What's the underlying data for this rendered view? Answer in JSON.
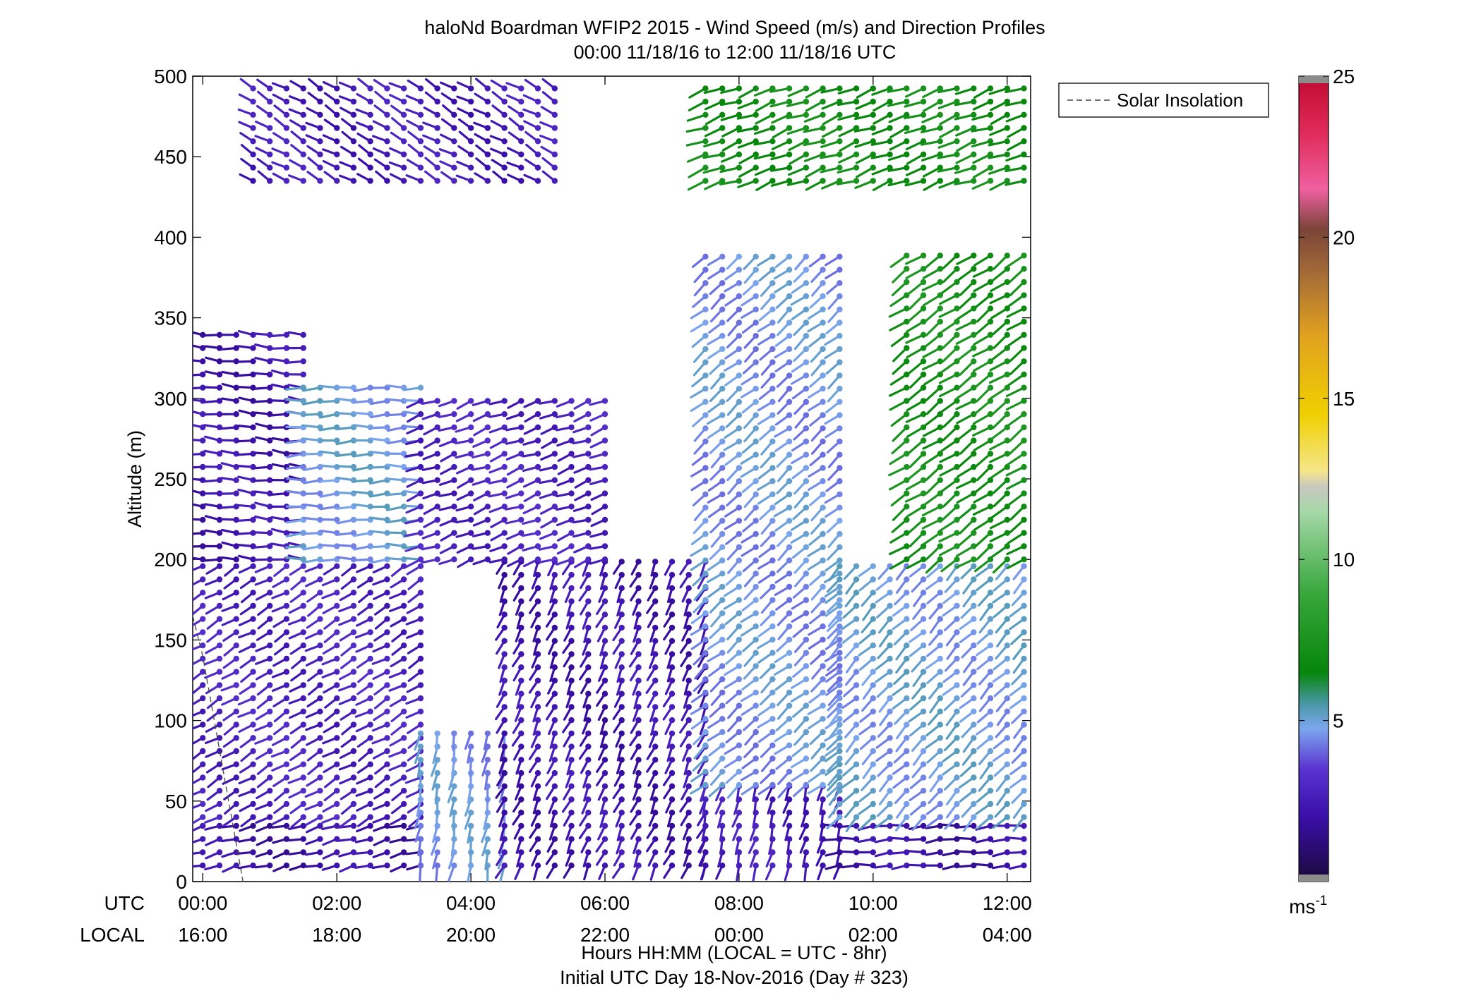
{
  "chart_data": {
    "type": "wind-barb profile (time-height)",
    "title": "haloNd Boardman WFIP2 2015 - Wind Speed (m/s) and Direction Profiles",
    "subtitle": "00:00 11/18/16 to 12:00 11/18/16  UTC",
    "ylabel": "Altitude (m)",
    "ylim": [
      0,
      500
    ],
    "yticks": [
      "0",
      "50",
      "100",
      "150",
      "200",
      "250",
      "300",
      "350",
      "400",
      "450",
      "500"
    ],
    "xlim_hours": [
      -0.15,
      12.35
    ],
    "utc_row_label": "UTC",
    "local_row_label": "LOCAL",
    "utc_ticks": [
      "00:00",
      "02:00",
      "04:00",
      "06:00",
      "08:00",
      "10:00",
      "12:00"
    ],
    "local_ticks": [
      "16:00",
      "18:00",
      "20:00",
      "22:00",
      "00:00",
      "02:00",
      "04:00"
    ],
    "xlabel": "Hours HH:MM  (LOCAL = UTC - 8hr)",
    "xlabel2": "Initial UTC Day 18-Nov-2016 (Day # 323)",
    "legend": {
      "label": "Solar Insolation",
      "position": "top-right"
    },
    "solar_insolation_line": {
      "hours": [
        -0.15,
        0.0,
        0.15,
        0.3,
        0.45,
        0.6
      ],
      "altitude_m": [
        165,
        140,
        105,
        70,
        35,
        0
      ]
    },
    "colorbar": {
      "ticks": [
        "5",
        "10",
        "15",
        "20",
        "25"
      ],
      "tick_values": [
        5,
        10,
        15,
        20,
        25
      ],
      "range": [
        0,
        25
      ],
      "unit": "ms",
      "unit_exponent": "-1"
    },
    "time_step_hours": 0.25,
    "altitude_step_m": 8.2,
    "profiles_note": "Barb field approximated regime by regime: speed in m/s, direction in degrees (meteorological, direction wind is from)",
    "regimes": [
      {
        "t": [
          0.0,
          3.25
        ],
        "z": [
          10,
          40
        ],
        "speed": 2.0,
        "dir": 255
      },
      {
        "t": [
          0.0,
          3.25
        ],
        "z": [
          40,
          200
        ],
        "speed": 2.8,
        "dir": 240
      },
      {
        "t": [
          0.0,
          1.5
        ],
        "z": [
          200,
          340
        ],
        "speed": 2.2,
        "dir": 275
      },
      {
        "t": [
          1.5,
          3.25
        ],
        "z": [
          200,
          310
        ],
        "speed": 4.8,
        "dir": 268
      },
      {
        "t": [
          3.25,
          4.5
        ],
        "z": [
          10,
          100
        ],
        "speed": 4.6,
        "dir": 190
      },
      {
        "t": [
          4.5,
          7.5
        ],
        "z": [
          10,
          200
        ],
        "speed": 2.2,
        "dir": 205
      },
      {
        "t": [
          3.25,
          6.0
        ],
        "z": [
          200,
          300
        ],
        "speed": 2.8,
        "dir": 250
      },
      {
        "t": [
          7.5,
          9.5
        ],
        "z": [
          10,
          60
        ],
        "speed": 2.5,
        "dir": 195
      },
      {
        "t": [
          7.5,
          9.5
        ],
        "z": [
          60,
          390
        ],
        "speed": 4.6,
        "dir": 230
      },
      {
        "t": [
          9.5,
          12.25
        ],
        "z": [
          10,
          40
        ],
        "speed": 2.0,
        "dir": 265
      },
      {
        "t": [
          9.5,
          12.25
        ],
        "z": [
          40,
          200
        ],
        "speed": 4.8,
        "dir": 225
      },
      {
        "t": [
          10.5,
          12.25
        ],
        "z": [
          200,
          390
        ],
        "speed": 7.2,
        "dir": 235
      },
      {
        "t": [
          7.5,
          12.25
        ],
        "z": [
          435,
          500
        ],
        "speed": 7.0,
        "dir": 250
      },
      {
        "t": [
          0.75,
          5.25
        ],
        "z": [
          435,
          500
        ],
        "speed": 2.5,
        "dir": 300
      }
    ]
  }
}
